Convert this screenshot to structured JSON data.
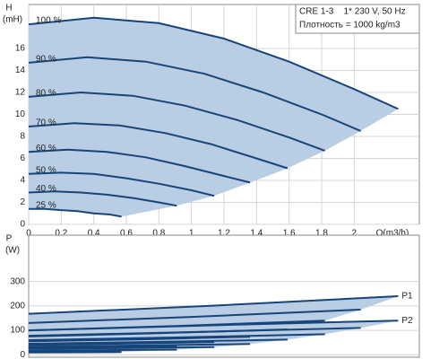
{
  "chart_data": [
    {
      "type": "line",
      "ylabel": "H",
      "yunit": "(mH)",
      "xlabel": "Q(m3/h)",
      "annotations": [
        "CRE 1-3    1* 230 V, 50 Hz",
        "Плотность = 1000 kg/m3"
      ],
      "xlim": [
        0,
        2.4
      ],
      "xticks": [
        0,
        0.2,
        0.4,
        0.6,
        0.8,
        1,
        1.2,
        1.4,
        1.6,
        1.8,
        2
      ],
      "ylim": [
        0,
        20
      ],
      "yticks": [
        0,
        2,
        4,
        6,
        8,
        10,
        12,
        14,
        16
      ],
      "grid": true,
      "fill": "#b9cde5",
      "series": [
        {
          "name": "100 %",
          "color": "#17457a",
          "x": [
            0,
            0.4,
            0.8,
            1.2,
            1.6,
            2.0,
            2.27
          ],
          "values": [
            18.2,
            18.8,
            18.3,
            16.9,
            14.8,
            12.3,
            10.5
          ]
        },
        {
          "name": "90 %",
          "color": "#17457a",
          "x": [
            0,
            0.36,
            0.72,
            1.08,
            1.44,
            1.8,
            2.04
          ],
          "values": [
            14.7,
            15.2,
            14.8,
            13.7,
            12.0,
            10.0,
            8.5
          ]
        },
        {
          "name": "80 %",
          "color": "#17457a",
          "x": [
            0,
            0.32,
            0.64,
            0.96,
            1.28,
            1.6,
            1.82
          ],
          "values": [
            11.6,
            12.0,
            11.7,
            10.8,
            9.5,
            7.9,
            6.7
          ]
        },
        {
          "name": "70 %",
          "color": "#17457a",
          "x": [
            0,
            0.28,
            0.56,
            0.84,
            1.12,
            1.4,
            1.59
          ],
          "values": [
            8.9,
            9.2,
            9.0,
            8.3,
            7.3,
            6.0,
            5.1
          ]
        },
        {
          "name": "60 %",
          "color": "#17457a",
          "x": [
            0,
            0.24,
            0.48,
            0.72,
            0.96,
            1.2,
            1.36
          ],
          "values": [
            6.6,
            6.8,
            6.6,
            6.1,
            5.3,
            4.4,
            3.8
          ]
        },
        {
          "name": "50 %",
          "color": "#17457a",
          "x": [
            0,
            0.2,
            0.4,
            0.6,
            0.8,
            1.0,
            1.14
          ],
          "values": [
            4.6,
            4.7,
            4.6,
            4.2,
            3.7,
            3.1,
            2.6
          ]
        },
        {
          "name": "40 %",
          "color": "#17457a",
          "x": [
            0,
            0.16,
            0.32,
            0.48,
            0.64,
            0.8,
            0.91
          ],
          "values": [
            2.9,
            3.0,
            2.9,
            2.7,
            2.4,
            2.0,
            1.7
          ]
        },
        {
          "name": "25 %",
          "color": "#17457a",
          "x": [
            0,
            0.1,
            0.2,
            0.3,
            0.4,
            0.5,
            0.57
          ],
          "values": [
            1.4,
            1.4,
            1.3,
            1.2,
            1.0,
            0.9,
            0.7
          ]
        }
      ]
    },
    {
      "type": "line",
      "ylabel": "P",
      "yunit": "(W)",
      "xlim": [
        0,
        2.4
      ],
      "ylim": [
        -10,
        490
      ],
      "yticks": [
        0,
        100,
        200,
        300
      ],
      "grid": true,
      "fill": "#b9cde5",
      "series": [
        {
          "name": "P1",
          "color": "#17457a",
          "curves": [
            {
              "x": [
                0,
                1.1,
                2.27
              ],
              "values": [
                168,
                200,
                240
              ]
            },
            {
              "x": [
                0,
                1.0,
                2.04
              ],
              "values": [
                130,
                155,
                185
              ]
            },
            {
              "x": [
                0,
                0.9,
                1.82
              ],
              "values": [
                100,
                118,
                140
              ]
            },
            {
              "x": [
                0,
                0.8,
                1.59
              ],
              "values": [
                75,
                88,
                104
              ]
            },
            {
              "x": [
                0,
                0.7,
                1.36
              ],
              "values": [
                55,
                63,
                74
              ]
            },
            {
              "x": [
                0,
                0.55,
                1.14
              ],
              "values": [
                40,
                45,
                52
              ]
            },
            {
              "x": [
                0,
                0.45,
                0.91
              ],
              "values": [
                28,
                31,
                35
              ]
            },
            {
              "x": [
                0,
                0.3,
                0.57
              ],
              "values": [
                15,
                16,
                18
              ]
            }
          ]
        },
        {
          "name": "P2",
          "color": "#17457a",
          "curves": [
            {
              "x": [
                0,
                1.1,
                2.27
              ],
              "values": [
                100,
                120,
                140
              ]
            },
            {
              "x": [
                0,
                1.0,
                2.04
              ],
              "values": [
                78,
                93,
                110
              ]
            },
            {
              "x": [
                0,
                0.9,
                1.82
              ],
              "values": [
                60,
                71,
                84
              ]
            },
            {
              "x": [
                0,
                0.8,
                1.59
              ],
              "values": [
                45,
                53,
                62
              ]
            },
            {
              "x": [
                0,
                0.7,
                1.36
              ],
              "values": [
                33,
                38,
                44
              ]
            },
            {
              "x": [
                0,
                0.55,
                1.14
              ],
              "values": [
                24,
                27,
                31
              ]
            },
            {
              "x": [
                0,
                0.45,
                0.91
              ],
              "values": [
                17,
                19,
                21
              ]
            },
            {
              "x": [
                0,
                0.3,
                0.57
              ],
              "values": [
                9,
                10,
                11
              ]
            }
          ]
        }
      ]
    }
  ]
}
